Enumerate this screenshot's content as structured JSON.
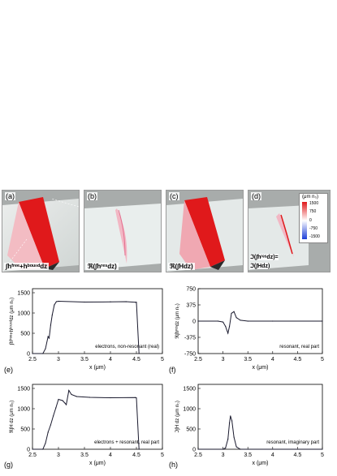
{
  "panels_3d": [
    {
      "label": "(a)",
      "caption": "∫hᶠʳᵉᵉ+hᵇᵒᵘⁿᵈdz"
    },
    {
      "label": "(b)",
      "caption": "ℜ(∫hʳᵉˢdz)"
    },
    {
      "label": "(c)",
      "caption": "ℜ(∫Hdz)"
    },
    {
      "label": "(d)",
      "caption": ""
    }
  ],
  "colorbar": {
    "title": "(μm n₀)",
    "ticks": [
      "1500",
      "750",
      "0",
      "-750",
      "-1500"
    ]
  },
  "equation": {
    "line1": "ℑ(∫hʳᵉˢdz)=",
    "line2": "ℑ(∫Hdz)"
  },
  "chart_data": [
    {
      "type": "line",
      "panel": "(e)",
      "annotation": "electrons, non-resonant (real)",
      "xlabel": "x (μm)",
      "ylabel": "∫hᶠʳᵉᵉ+hᵇᵒᵘⁿᵈdz (μm n₀)",
      "xlim": [
        2.5,
        5
      ],
      "ylim": [
        0,
        1600
      ],
      "xticks": [
        "2.5",
        "3",
        "3.5",
        "4",
        "4.5",
        "5"
      ],
      "yticks": [
        "0",
        "500",
        "1000",
        "1500"
      ],
      "x": [
        2.5,
        2.7,
        2.75,
        2.8,
        2.82,
        2.85,
        2.88,
        2.92,
        2.96,
        3.0,
        3.5,
        4.0,
        4.3,
        4.48,
        4.5,
        4.55
      ],
      "y": [
        0,
        0,
        120,
        420,
        380,
        700,
        950,
        1200,
        1280,
        1290,
        1270,
        1275,
        1280,
        1265,
        1265,
        0
      ]
    },
    {
      "type": "line",
      "panel": "(f)",
      "annotation": "resonant, real part",
      "xlabel": "x (μm)",
      "ylabel": "ℜ∫hʳᵉˢdz (μm n₀)",
      "xlim": [
        2.5,
        5
      ],
      "ylim": [
        -750,
        750
      ],
      "xticks": [
        "2.5",
        "3",
        "3.5",
        "4",
        "4.5",
        "5"
      ],
      "yticks": [
        "750",
        "375",
        "0",
        "-375",
        "-750"
      ],
      "x": [
        2.5,
        2.9,
        3.0,
        3.05,
        3.1,
        3.13,
        3.17,
        3.22,
        3.27,
        3.35,
        3.5,
        4.0,
        5.0
      ],
      "y": [
        0,
        0,
        -20,
        -120,
        -280,
        -120,
        180,
        220,
        80,
        20,
        0,
        0,
        0
      ]
    },
    {
      "type": "line",
      "panel": "(g)",
      "annotation": "electrons + resonant, real part",
      "xlabel": "x (μm)",
      "ylabel": "ℜ∫H dz (μm n₀)",
      "xlim": [
        2.5,
        5
      ],
      "ylim": [
        0,
        1600
      ],
      "xticks": [
        "2.5",
        "3",
        "3.5",
        "4",
        "4.5",
        "5"
      ],
      "yticks": [
        "0",
        "500",
        "1000",
        "1500"
      ],
      "x": [
        2.5,
        2.7,
        2.75,
        2.8,
        2.85,
        2.9,
        2.95,
        3.0,
        3.08,
        3.15,
        3.2,
        3.25,
        3.35,
        3.6,
        4.0,
        4.48,
        4.5,
        4.55
      ],
      "y": [
        0,
        0,
        150,
        420,
        600,
        820,
        1020,
        1230,
        1200,
        1100,
        1450,
        1350,
        1300,
        1280,
        1270,
        1275,
        1265,
        0
      ]
    },
    {
      "type": "line",
      "panel": "(h)",
      "annotation": "resonant, imaginary part",
      "xlabel": "x (μm)",
      "ylabel": "ℑ∫H dz (μm n₀)",
      "xlim": [
        2.5,
        5
      ],
      "ylim": [
        0,
        1600
      ],
      "xticks": [
        "2.5",
        "3",
        "3.5",
        "4",
        "4.5",
        "5"
      ],
      "yticks": [
        "0",
        "500",
        "1000",
        "1500"
      ],
      "x": [
        2.5,
        3.0,
        3.05,
        3.1,
        3.13,
        3.15,
        3.18,
        3.22,
        3.27,
        3.35,
        5.0
      ],
      "y": [
        0,
        0,
        30,
        250,
        650,
        820,
        700,
        300,
        60,
        0,
        0
      ]
    }
  ]
}
